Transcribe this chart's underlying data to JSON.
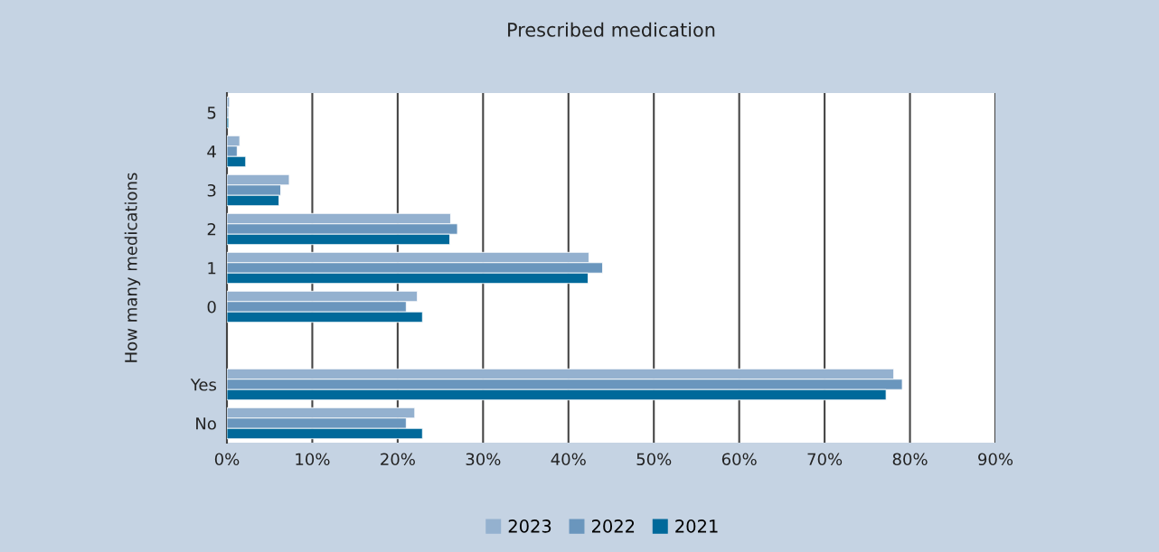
{
  "chart_data": {
    "type": "bar",
    "orientation": "horizontal",
    "title": "Prescribed medication",
    "ylabel": "How many medications",
    "categories": [
      "5",
      "4",
      "3",
      "2",
      "1",
      "0",
      null,
      "Yes",
      "No"
    ],
    "series": [
      {
        "name": "2023",
        "color": "#94b1cf",
        "values": [
          0.3,
          1.5,
          7.3,
          26.2,
          42.4,
          22.3,
          null,
          78.1,
          22.0
        ]
      },
      {
        "name": "2022",
        "color": "#6a96bd",
        "values": [
          0.2,
          1.2,
          6.3,
          27.0,
          44.0,
          21.0,
          null,
          79.1,
          21.0
        ]
      },
      {
        "name": "2021",
        "color": "#00699a",
        "values": [
          0.2,
          2.2,
          6.1,
          26.1,
          42.3,
          22.9,
          null,
          77.2,
          22.9
        ]
      }
    ],
    "xlim": [
      0,
      90
    ],
    "xticks": [
      {
        "value": 0,
        "label": "0%"
      },
      {
        "value": 10,
        "label": "10%"
      },
      {
        "value": 20,
        "label": "20%"
      },
      {
        "value": 30,
        "label": "30%"
      },
      {
        "value": 40,
        "label": "40%"
      },
      {
        "value": 50,
        "label": "50%"
      },
      {
        "value": 60,
        "label": "60%"
      },
      {
        "value": 70,
        "label": "70%"
      },
      {
        "value": 80,
        "label": "80%"
      },
      {
        "value": 90,
        "label": "90%"
      }
    ],
    "grid": "x",
    "legend": "bottom"
  }
}
